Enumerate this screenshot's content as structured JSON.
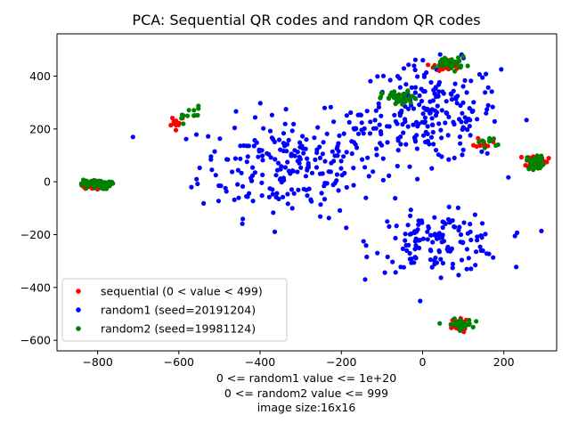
{
  "chart_data": {
    "type": "scatter",
    "title": "PCA: Sequential QR codes and random QR codes",
    "xlabel_lines": [
      "0 <= random1 value <= 1e+20",
      "0 <= random2 value <= 999",
      "image size:16x16"
    ],
    "ylabel": "",
    "xlim": [
      -900,
      330
    ],
    "ylim": [
      -640,
      560
    ],
    "xticks": [
      -800,
      -600,
      -400,
      -200,
      0,
      200
    ],
    "yticks": [
      -600,
      -400,
      -200,
      0,
      200,
      400
    ],
    "grid": false,
    "legend_position": "lower-left",
    "series": [
      {
        "name": "sequential (0 < value < 499)",
        "color": "#ff0000",
        "clusters": [
          {
            "center": [
              -810,
              -10
            ],
            "spread": [
              14,
              10
            ],
            "count": 55
          },
          {
            "center": [
              -605,
              230
            ],
            "spread": [
              12,
              12
            ],
            "count": 12
          },
          {
            "center": [
              -240,
              440
            ],
            "spread": [
              5,
              5
            ],
            "count": 0
          },
          {
            "center": [
              60,
              440
            ],
            "spread": [
              16,
              12
            ],
            "count": 40
          },
          {
            "center": [
              150,
              150
            ],
            "spread": [
              10,
              10
            ],
            "count": 10
          },
          {
            "center": [
              280,
              80
            ],
            "spread": [
              14,
              12
            ],
            "count": 25
          },
          {
            "center": [
              85,
              -545
            ],
            "spread": [
              14,
              12
            ],
            "count": 30
          }
        ]
      },
      {
        "name": "random1 (seed=20191204)",
        "color": "#0000ff",
        "clusters": [
          {
            "center": [
              -330,
              60
            ],
            "spread": [
              110,
              95
            ],
            "count": 220
          },
          {
            "center": [
              20,
              260
            ],
            "spread": [
              85,
              95
            ],
            "count": 210
          },
          {
            "center": [
              40,
              -230
            ],
            "spread": [
              80,
              55
            ],
            "count": 140
          },
          {
            "center": [
              -150,
              170
            ],
            "spread": [
              70,
              60
            ],
            "count": 25
          }
        ]
      },
      {
        "name": "random2 (seed=19981124)",
        "color": "#008000",
        "clusters": [
          {
            "center": [
              -805,
              -10
            ],
            "spread": [
              18,
              9
            ],
            "count": 60
          },
          {
            "center": [
              -580,
              255
            ],
            "spread": [
              20,
              16
            ],
            "count": 12
          },
          {
            "center": [
              -55,
              315
            ],
            "spread": [
              22,
              14
            ],
            "count": 45
          },
          {
            "center": [
              70,
              450
            ],
            "spread": [
              18,
              12
            ],
            "count": 40
          },
          {
            "center": [
              160,
              150
            ],
            "spread": [
              12,
              10
            ],
            "count": 10
          },
          {
            "center": [
              280,
              75
            ],
            "spread": [
              12,
              14
            ],
            "count": 30
          },
          {
            "center": [
              90,
              -540
            ],
            "spread": [
              16,
              10
            ],
            "count": 35
          }
        ]
      }
    ]
  }
}
